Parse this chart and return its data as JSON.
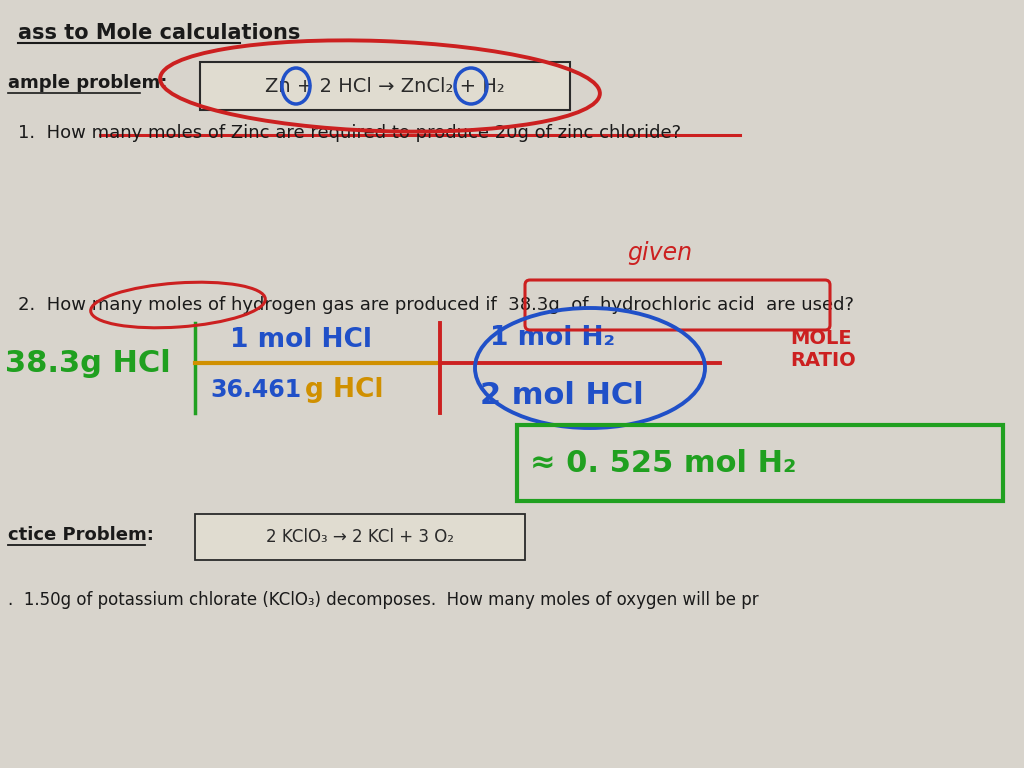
{
  "bg_color": "#b8b4ac",
  "paper_color": "#d8d4cc",
  "colors": {
    "red": "#cc2020",
    "blue": "#2050c8",
    "green": "#20a020",
    "orange": "#d09000",
    "dark": "#1a1a1a",
    "dark2": "#2a2a2a"
  },
  "title": "ass to Mole calculations",
  "example_label": "ample problem:",
  "eq1_text": "Zn + 2 HCl → ZnCl₂ + H₂",
  "q1": "1.  How many moles of Zinc are required to produce 20g of zinc chloride?",
  "q2": "2.  How many moles of hydrogen gas are produced if  38.3g  of  hydrochloric acid  are used?",
  "given": "given",
  "green_label": "38.3g HCl",
  "frac1_num": "1 mol HCl",
  "frac1_den": "36.461 g HCl",
  "frac2_num": "1 mol H₂",
  "frac2_den": "2 mol HCl",
  "mole_ratio": "MOLE\nRATIO",
  "answer": "≈ 0. 525 mol H₂",
  "practice_label": "ctice Problem:",
  "eq2_text": "2 KClO₃ → 2 KCl + 3 O₂",
  "bottom": ".  1.50g of potassium chlorate (KClO₃) decomposes.  How many moles of oxygen will be pr"
}
